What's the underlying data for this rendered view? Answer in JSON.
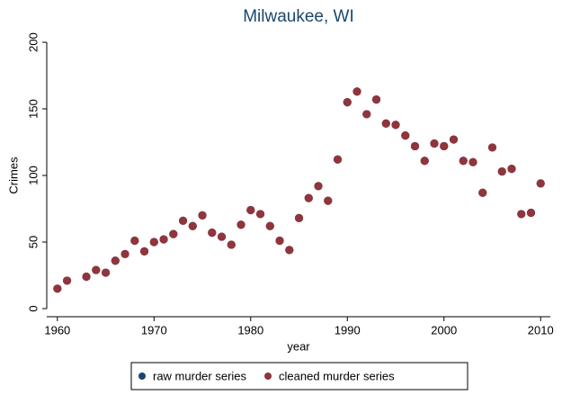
{
  "chart_data": {
    "type": "scatter",
    "title": "Milwaukee, WI",
    "x_label": "year",
    "y_label": "Crimes",
    "x": [
      1960,
      1961,
      1963,
      1964,
      1965,
      1966,
      1967,
      1968,
      1969,
      1970,
      1971,
      1972,
      1973,
      1974,
      1975,
      1976,
      1977,
      1978,
      1979,
      1980,
      1981,
      1982,
      1983,
      1984,
      1985,
      1986,
      1987,
      1988,
      1989,
      1990,
      1991,
      1992,
      1993,
      1994,
      1995,
      1996,
      1997,
      1998,
      1999,
      2000,
      2001,
      2002,
      2003,
      2004,
      2005,
      2006,
      2007,
      2008,
      2009,
      2010
    ],
    "series": [
      {
        "name": "raw murder series",
        "color": "#1a476f",
        "values": [
          15,
          21,
          24,
          29,
          27,
          36,
          41,
          51,
          43,
          50,
          52,
          56,
          66,
          62,
          70,
          57,
          54,
          48,
          63,
          74,
          71,
          62,
          51,
          44,
          68,
          83,
          92,
          81,
          112,
          155,
          163,
          146,
          157,
          139,
          138,
          130,
          122,
          111,
          124,
          122,
          127,
          111,
          110,
          87,
          121,
          103,
          105,
          71,
          72,
          94
        ]
      },
      {
        "name": "cleaned murder series",
        "color": "#90353b",
        "values": [
          15,
          21,
          24,
          29,
          27,
          36,
          41,
          51,
          43,
          50,
          52,
          56,
          66,
          62,
          70,
          57,
          54,
          48,
          63,
          74,
          71,
          62,
          51,
          44,
          68,
          83,
          92,
          81,
          112,
          155,
          163,
          146,
          157,
          139,
          138,
          130,
          122,
          111,
          124,
          122,
          127,
          111,
          110,
          87,
          121,
          103,
          105,
          71,
          72,
          94
        ]
      }
    ],
    "xlim": [
      1958.9,
      2011
    ],
    "ylim": [
      0,
      200
    ],
    "xticks": [
      1960,
      1970,
      1980,
      1990,
      2000,
      2010
    ],
    "yticks": [
      0,
      50,
      100,
      150,
      200
    ],
    "legend": "bottom"
  }
}
